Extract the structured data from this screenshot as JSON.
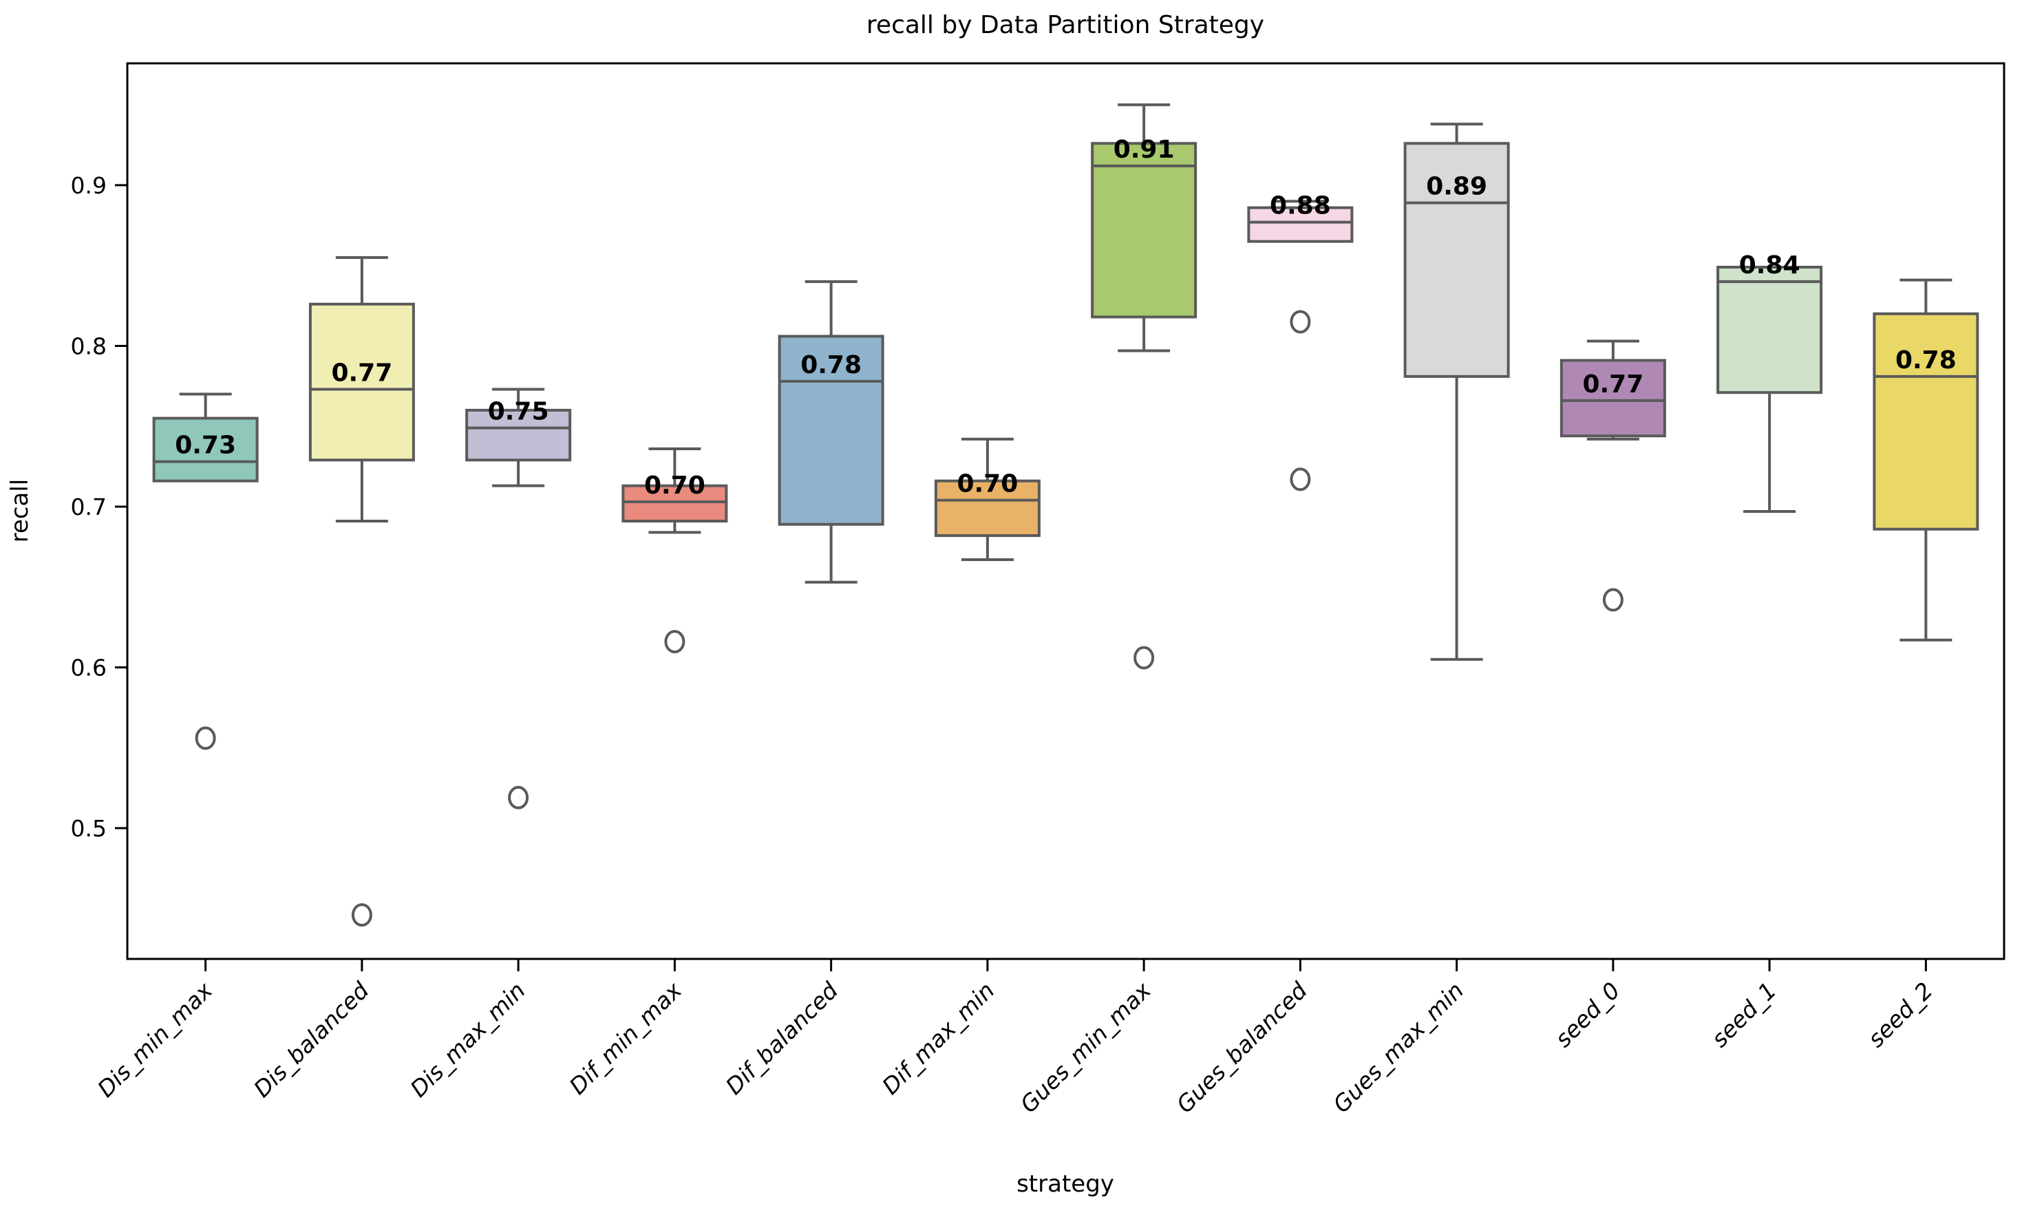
{
  "chart_data": {
    "type": "box",
    "title": "recall by Data Partition Strategy",
    "xlabel": "strategy",
    "ylabel": "recall",
    "ylim": [
      0.419,
      0.976
    ],
    "yticks": [
      0.5,
      0.6,
      0.7,
      0.8,
      0.9
    ],
    "grid": false,
    "legend": "none",
    "box_edge_color": "#5a5a5a",
    "spine_color": "#000000",
    "categories": [
      "Dis_min_max",
      "Dis_balanced",
      "Dis_max_min",
      "Dif_min_max",
      "Dif_balanced",
      "Dif_max_min",
      "Gues_min_max",
      "Gues_balanced",
      "Gues_max_min",
      "seed_0",
      "seed_1",
      "seed_2"
    ],
    "series": [
      {
        "label": "Dis_min_max",
        "color": "#8fc7bb",
        "median_label": "0.73",
        "whisker_high": 0.77,
        "q3": 0.755,
        "median": 0.728,
        "q1": 0.716,
        "whisker_low": null,
        "outliers": [
          0.556
        ]
      },
      {
        "label": "Dis_balanced",
        "color": "#f0eeb2",
        "median_label": "0.77",
        "whisker_high": 0.855,
        "q3": 0.826,
        "median": 0.773,
        "q1": 0.729,
        "whisker_low": 0.691,
        "outliers": [
          0.446
        ]
      },
      {
        "label": "Dis_max_min",
        "color": "#c2bed6",
        "median_label": "0.75",
        "whisker_high": 0.773,
        "q3": 0.76,
        "median": 0.749,
        "q1": 0.729,
        "whisker_low": 0.713,
        "outliers": [
          0.519
        ]
      },
      {
        "label": "Dif_min_max",
        "color": "#e88a7d",
        "median_label": "0.70",
        "whisker_high": 0.736,
        "q3": 0.713,
        "median": 0.703,
        "q1": 0.691,
        "whisker_low": 0.684,
        "outliers": [
          0.616
        ]
      },
      {
        "label": "Dif_balanced",
        "color": "#8fb3cc",
        "median_label": "0.78",
        "whisker_high": 0.84,
        "q3": 0.806,
        "median": 0.778,
        "q1": 0.689,
        "whisker_low": 0.653,
        "outliers": []
      },
      {
        "label": "Dif_max_min",
        "color": "#e9b267",
        "median_label": "0.70",
        "whisker_high": 0.742,
        "q3": 0.716,
        "median": 0.704,
        "q1": 0.682,
        "whisker_low": 0.667,
        "outliers": []
      },
      {
        "label": "Gues_min_max",
        "color": "#a8c96d",
        "median_label": "0.91",
        "whisker_high": 0.95,
        "q3": 0.926,
        "median": 0.912,
        "q1": 0.818,
        "whisker_low": 0.797,
        "outliers": [
          0.606
        ]
      },
      {
        "label": "Gues_balanced",
        "color": "#f5d7e6",
        "median_label": "0.88",
        "whisker_high": 0.89,
        "q3": 0.886,
        "median": 0.877,
        "q1": 0.865,
        "whisker_low": null,
        "outliers": [
          0.815,
          0.717
        ]
      },
      {
        "label": "Gues_max_min",
        "color": "#d9d9d9",
        "median_label": "0.89",
        "whisker_high": 0.938,
        "q3": 0.926,
        "median": 0.889,
        "q1": 0.781,
        "whisker_low": 0.605,
        "outliers": []
      },
      {
        "label": "seed_0",
        "color": "#b088b4",
        "median_label": "0.77",
        "whisker_high": 0.803,
        "q3": 0.791,
        "median": 0.766,
        "q1": 0.744,
        "whisker_low": 0.742,
        "outliers": [
          0.642
        ]
      },
      {
        "label": "seed_1",
        "color": "#cfe2ca",
        "median_label": "0.84",
        "whisker_high": null,
        "q3": 0.849,
        "median": 0.84,
        "q1": 0.771,
        "whisker_low": 0.697,
        "outliers": []
      },
      {
        "label": "seed_2",
        "color": "#e9d868",
        "median_label": "0.78",
        "whisker_high": 0.841,
        "q3": 0.82,
        "median": 0.781,
        "q1": 0.686,
        "whisker_low": 0.617,
        "outliers": []
      }
    ]
  }
}
